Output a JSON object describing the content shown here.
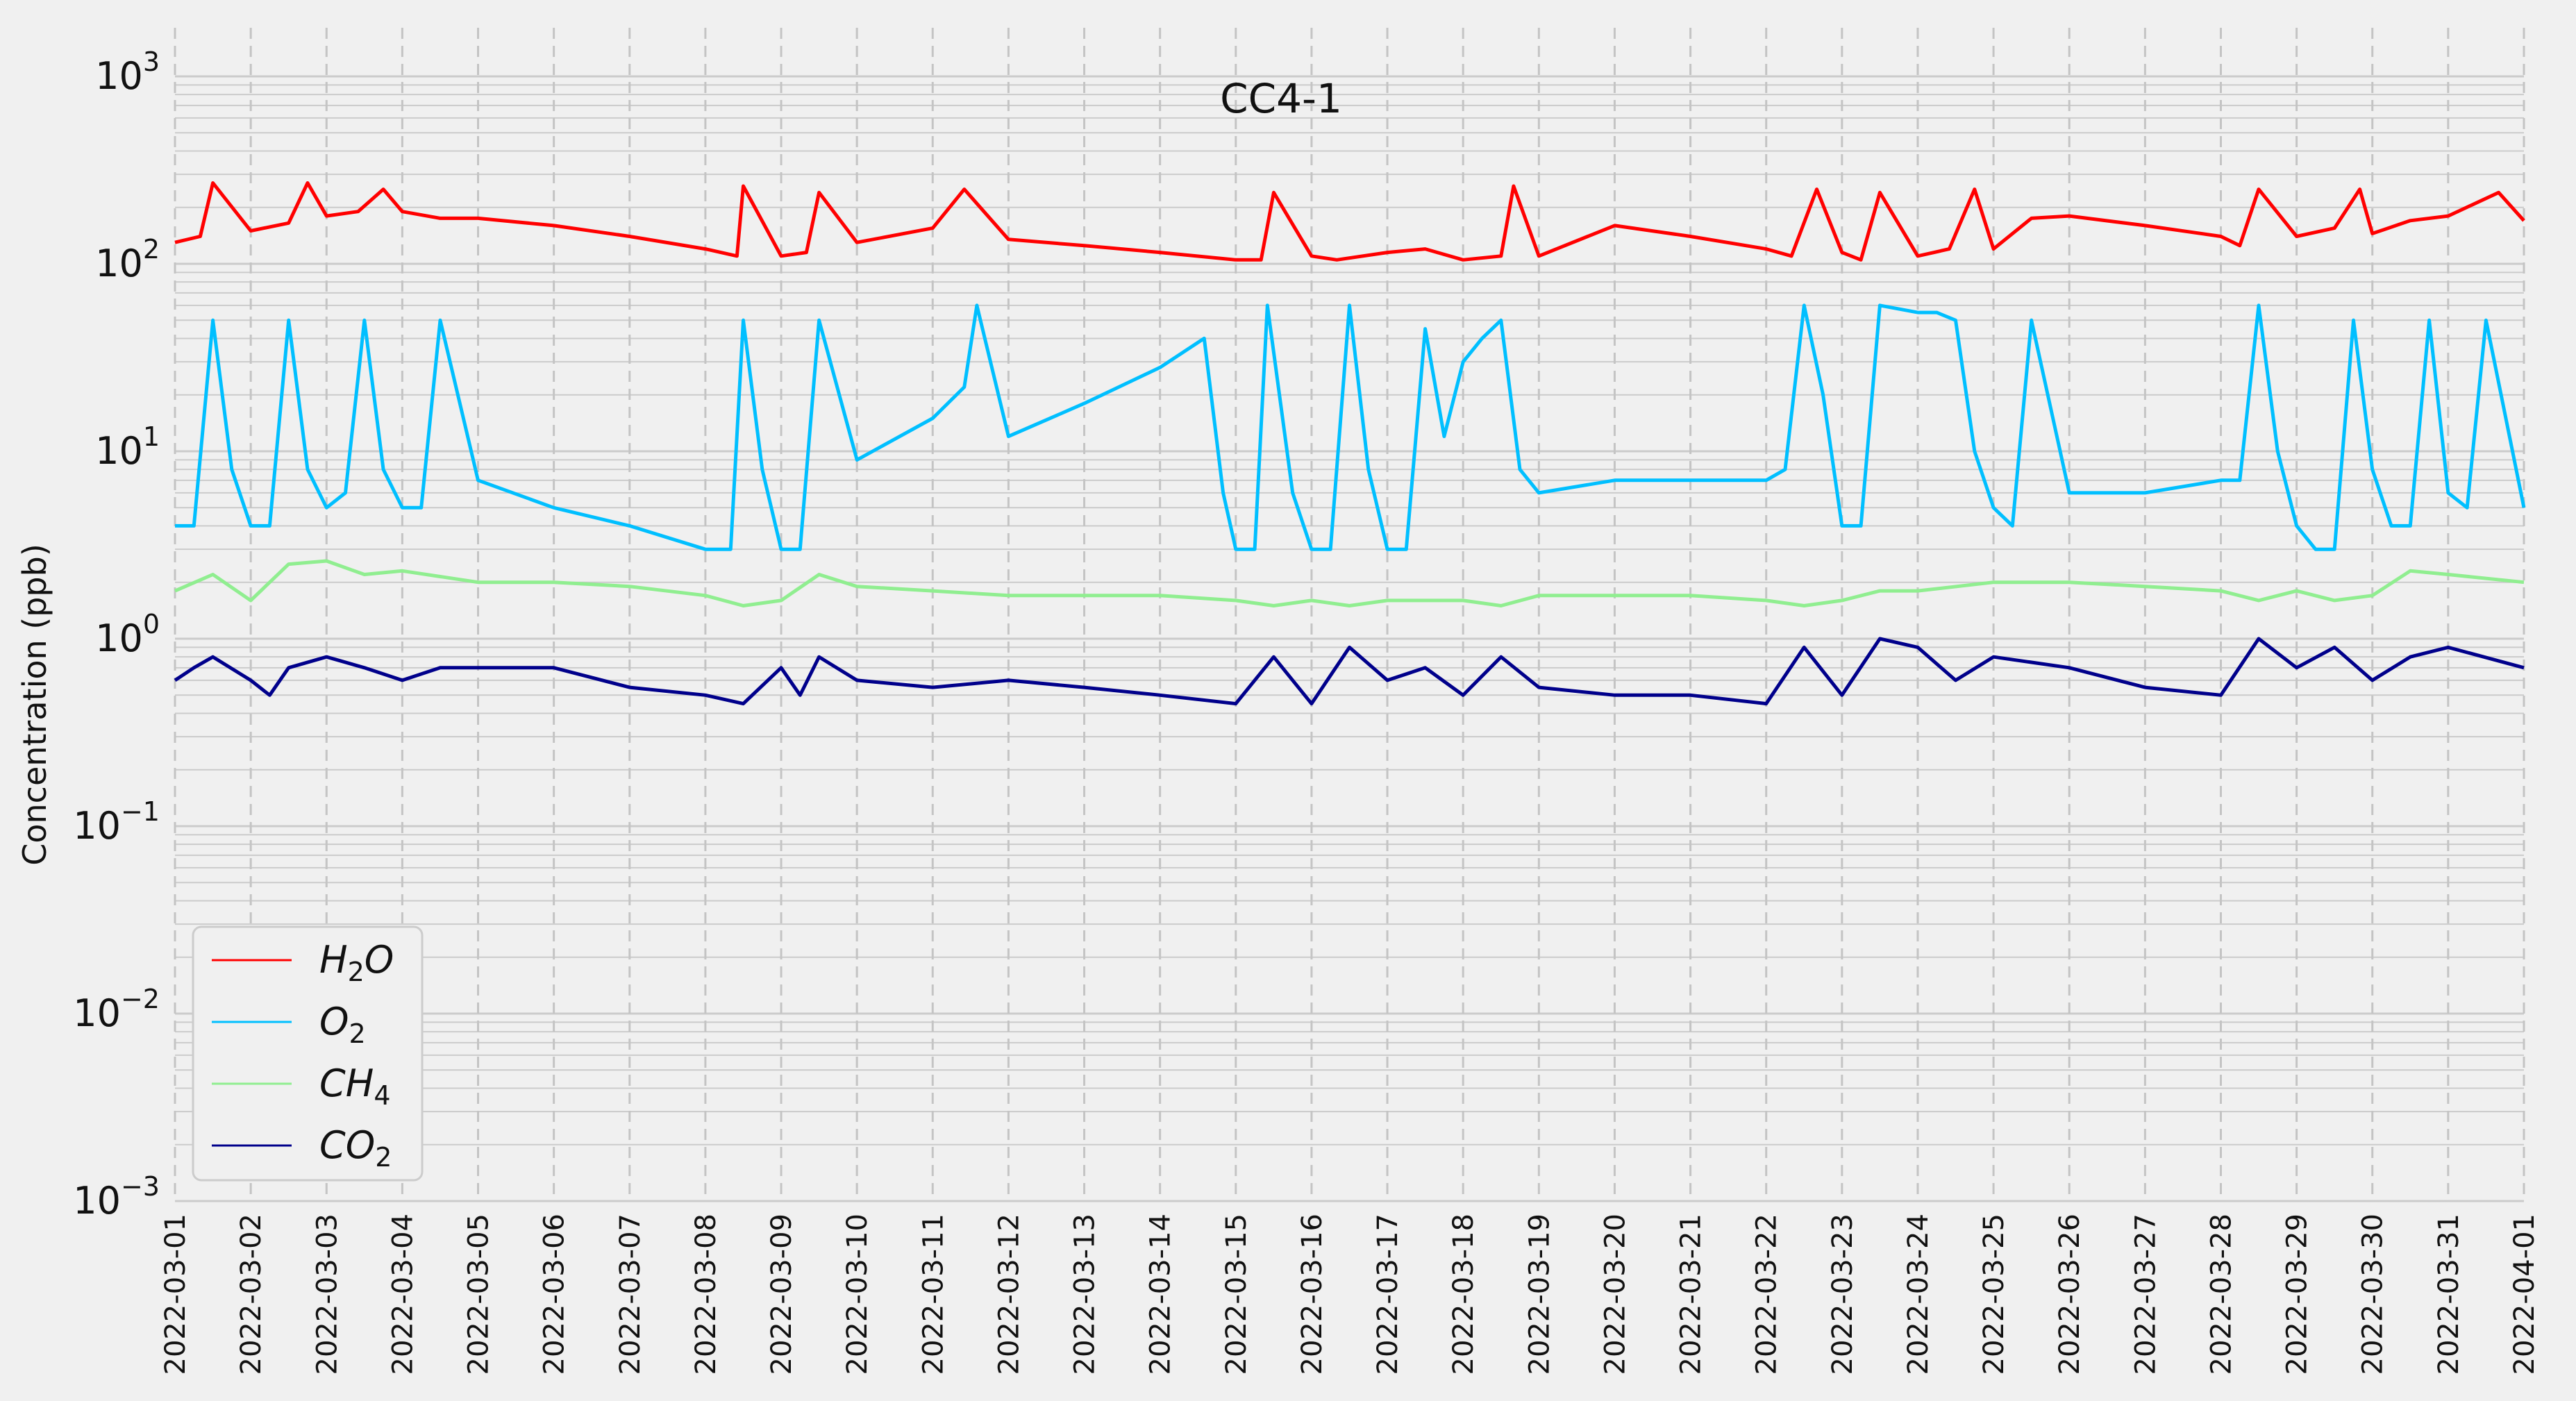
{
  "chart_data": {
    "type": "line",
    "title": "CC4-1",
    "xlabel": "",
    "ylabel": "Concentration (ppb)",
    "yscale": "log",
    "ylim": [
      0.001,
      1000
    ],
    "xlim": [
      "2022-03-01",
      "2022-04-01"
    ],
    "grid": true,
    "legend_position": "lower-left",
    "y_ticks": [
      {
        "value": 0.001,
        "base": "10",
        "exp": "−3"
      },
      {
        "value": 0.01,
        "base": "10",
        "exp": "−2"
      },
      {
        "value": 0.1,
        "base": "10",
        "exp": "−1"
      },
      {
        "value": 1,
        "base": "10",
        "exp": "0"
      },
      {
        "value": 10,
        "base": "10",
        "exp": "1"
      },
      {
        "value": 100,
        "base": "10",
        "exp": "2"
      },
      {
        "value": 1000,
        "base": "10",
        "exp": "3"
      }
    ],
    "x_ticks": [
      "2022-03-01",
      "2022-03-02",
      "2022-03-03",
      "2022-03-04",
      "2022-03-05",
      "2022-03-06",
      "2022-03-07",
      "2022-03-08",
      "2022-03-09",
      "2022-03-10",
      "2022-03-11",
      "2022-03-12",
      "2022-03-13",
      "2022-03-14",
      "2022-03-15",
      "2022-03-16",
      "2022-03-17",
      "2022-03-18",
      "2022-03-19",
      "2022-03-20",
      "2022-03-21",
      "2022-03-22",
      "2022-03-23",
      "2022-03-24",
      "2022-03-25",
      "2022-03-26",
      "2022-03-27",
      "2022-03-28",
      "2022-03-29",
      "2022-03-30",
      "2022-03-31",
      "2022-04-01"
    ],
    "series": [
      {
        "name_base": "H",
        "name_sub": "2",
        "name_tail": "O",
        "color": "#ff0000",
        "x": [
          "2022-03-01",
          "2022-03-01 08:00",
          "2022-03-01 12:00",
          "2022-03-02",
          "2022-03-02 12:00",
          "2022-03-02 18:00",
          "2022-03-03",
          "2022-03-03 10:00",
          "2022-03-03 18:00",
          "2022-03-04",
          "2022-03-04 12:00",
          "2022-03-05",
          "2022-03-06",
          "2022-03-07",
          "2022-03-08",
          "2022-03-08 10:00",
          "2022-03-08 12:00",
          "2022-03-09",
          "2022-03-09 08:00",
          "2022-03-09 12:00",
          "2022-03-10",
          "2022-03-11",
          "2022-03-11 10:00",
          "2022-03-12",
          "2022-03-13",
          "2022-03-14",
          "2022-03-15",
          "2022-03-15 08:00",
          "2022-03-15 12:00",
          "2022-03-16",
          "2022-03-16 08:00",
          "2022-03-17",
          "2022-03-17 12:00",
          "2022-03-18",
          "2022-03-18 12:00",
          "2022-03-18 16:00",
          "2022-03-19",
          "2022-03-20",
          "2022-03-21",
          "2022-03-22",
          "2022-03-22 08:00",
          "2022-03-22 16:00",
          "2022-03-23",
          "2022-03-23 06:00",
          "2022-03-23 12:00",
          "2022-03-24",
          "2022-03-24 10:00",
          "2022-03-24 18:00",
          "2022-03-25",
          "2022-03-25 12:00",
          "2022-03-26",
          "2022-03-27",
          "2022-03-28",
          "2022-03-28 06:00",
          "2022-03-28 12:00",
          "2022-03-29",
          "2022-03-29 12:00",
          "2022-03-29 20:00",
          "2022-03-30",
          "2022-03-30 12:00",
          "2022-03-31",
          "2022-03-31 16:00",
          "2022-04-01"
        ],
        "values": [
          130,
          140,
          270,
          150,
          165,
          270,
          180,
          190,
          250,
          190,
          175,
          175,
          160,
          140,
          120,
          110,
          260,
          110,
          115,
          240,
          130,
          155,
          250,
          135,
          125,
          115,
          105,
          105,
          240,
          110,
          105,
          115,
          120,
          105,
          110,
          260,
          110,
          160,
          140,
          120,
          110,
          250,
          115,
          105,
          240,
          110,
          120,
          250,
          120,
          175,
          180,
          160,
          140,
          125,
          250,
          140,
          155,
          250,
          145,
          170,
          180,
          240,
          170
        ]
      },
      {
        "name_base": "O",
        "name_sub": "2",
        "name_tail": "",
        "color": "#00bfff",
        "x": [
          "2022-03-01",
          "2022-03-01 06:00",
          "2022-03-01 12:00",
          "2022-03-01 18:00",
          "2022-03-02",
          "2022-03-02 06:00",
          "2022-03-02 12:00",
          "2022-03-02 18:00",
          "2022-03-03",
          "2022-03-03 06:00",
          "2022-03-03 12:00",
          "2022-03-03 18:00",
          "2022-03-04",
          "2022-03-04 06:00",
          "2022-03-04 12:00",
          "2022-03-05",
          "2022-03-06",
          "2022-03-07",
          "2022-03-08",
          "2022-03-08 08:00",
          "2022-03-08 12:00",
          "2022-03-08 18:00",
          "2022-03-09",
          "2022-03-09 06:00",
          "2022-03-09 12:00",
          "2022-03-10",
          "2022-03-11",
          "2022-03-11 10:00",
          "2022-03-11 14:00",
          "2022-03-12",
          "2022-03-13",
          "2022-03-14",
          "2022-03-14 14:00",
          "2022-03-14 20:00",
          "2022-03-15",
          "2022-03-15 06:00",
          "2022-03-15 10:00",
          "2022-03-15 18:00",
          "2022-03-16",
          "2022-03-16 06:00",
          "2022-03-16 12:00",
          "2022-03-16 18:00",
          "2022-03-17",
          "2022-03-17 06:00",
          "2022-03-17 12:00",
          "2022-03-17 18:00",
          "2022-03-18",
          "2022-03-18 06:00",
          "2022-03-18 12:00",
          "2022-03-18 18:00",
          "2022-03-19",
          "2022-03-20",
          "2022-03-21",
          "2022-03-22",
          "2022-03-22 06:00",
          "2022-03-22 12:00",
          "2022-03-22 18:00",
          "2022-03-23",
          "2022-03-23 06:00",
          "2022-03-23 12:00",
          "2022-03-24",
          "2022-03-24 06:00",
          "2022-03-24 12:00",
          "2022-03-24 18:00",
          "2022-03-25",
          "2022-03-25 06:00",
          "2022-03-25 12:00",
          "2022-03-26",
          "2022-03-27",
          "2022-03-28",
          "2022-03-28 06:00",
          "2022-03-28 12:00",
          "2022-03-28 18:00",
          "2022-03-29",
          "2022-03-29 06:00",
          "2022-03-29 12:00",
          "2022-03-29 18:00",
          "2022-03-30",
          "2022-03-30 06:00",
          "2022-03-30 12:00",
          "2022-03-30 18:00",
          "2022-03-31",
          "2022-03-31 06:00",
          "2022-03-31 12:00",
          "2022-04-01"
        ],
        "values": [
          4,
          4,
          50,
          8,
          4,
          4,
          50,
          8,
          5,
          6,
          50,
          8,
          5,
          5,
          50,
          7,
          5,
          4,
          3,
          3,
          50,
          8,
          3,
          3,
          50,
          9,
          15,
          22,
          60,
          12,
          18,
          28,
          40,
          6,
          3,
          3,
          60,
          6,
          3,
          3,
          60,
          8,
          3,
          3,
          45,
          12,
          30,
          40,
          50,
          8,
          6,
          7,
          7,
          7,
          8,
          60,
          20,
          4,
          4,
          60,
          55,
          55,
          50,
          10,
          5,
          4,
          50,
          6,
          6,
          7,
          7,
          60,
          10,
          4,
          3,
          3,
          50,
          8,
          4,
          4,
          50,
          6,
          5,
          50,
          5
        ]
      },
      {
        "name_base": "CH",
        "name_sub": "4",
        "name_tail": "",
        "color": "#90ee90",
        "x": [
          "2022-03-01",
          "2022-03-01 12:00",
          "2022-03-02",
          "2022-03-02 12:00",
          "2022-03-03",
          "2022-03-03 12:00",
          "2022-03-04",
          "2022-03-05",
          "2022-03-06",
          "2022-03-07",
          "2022-03-08",
          "2022-03-08 12:00",
          "2022-03-09",
          "2022-03-09 12:00",
          "2022-03-10",
          "2022-03-11",
          "2022-03-12",
          "2022-03-13",
          "2022-03-14",
          "2022-03-15",
          "2022-03-15 12:00",
          "2022-03-16",
          "2022-03-16 12:00",
          "2022-03-17",
          "2022-03-18",
          "2022-03-18 12:00",
          "2022-03-19",
          "2022-03-20",
          "2022-03-21",
          "2022-03-22",
          "2022-03-22 12:00",
          "2022-03-23",
          "2022-03-23 12:00",
          "2022-03-24",
          "2022-03-25",
          "2022-03-26",
          "2022-03-27",
          "2022-03-28",
          "2022-03-28 12:00",
          "2022-03-29",
          "2022-03-29 12:00",
          "2022-03-30",
          "2022-03-30 12:00",
          "2022-03-31",
          "2022-04-01"
        ],
        "values": [
          1.8,
          2.2,
          1.6,
          2.5,
          2.6,
          2.2,
          2.3,
          2.0,
          2.0,
          1.9,
          1.7,
          1.5,
          1.6,
          2.2,
          1.9,
          1.8,
          1.7,
          1.7,
          1.7,
          1.6,
          1.5,
          1.6,
          1.5,
          1.6,
          1.6,
          1.5,
          1.7,
          1.7,
          1.7,
          1.6,
          1.5,
          1.6,
          1.8,
          1.8,
          2.0,
          2.0,
          1.9,
          1.8,
          1.6,
          1.8,
          1.6,
          1.7,
          2.3,
          2.2,
          2.0
        ]
      },
      {
        "name_base": "CO",
        "name_sub": "2",
        "name_tail": "",
        "color": "#00008b",
        "x": [
          "2022-03-01",
          "2022-03-01 06:00",
          "2022-03-01 12:00",
          "2022-03-02",
          "2022-03-02 06:00",
          "2022-03-02 12:00",
          "2022-03-03",
          "2022-03-03 12:00",
          "2022-03-04",
          "2022-03-04 12:00",
          "2022-03-05",
          "2022-03-06",
          "2022-03-07",
          "2022-03-08",
          "2022-03-08 12:00",
          "2022-03-09",
          "2022-03-09 06:00",
          "2022-03-09 12:00",
          "2022-03-10",
          "2022-03-11",
          "2022-03-12",
          "2022-03-13",
          "2022-03-14",
          "2022-03-15",
          "2022-03-15 12:00",
          "2022-03-16",
          "2022-03-16 12:00",
          "2022-03-17",
          "2022-03-17 12:00",
          "2022-03-18",
          "2022-03-18 12:00",
          "2022-03-19",
          "2022-03-20",
          "2022-03-21",
          "2022-03-22",
          "2022-03-22 12:00",
          "2022-03-23",
          "2022-03-23 12:00",
          "2022-03-24",
          "2022-03-24 12:00",
          "2022-03-25",
          "2022-03-26",
          "2022-03-27",
          "2022-03-28",
          "2022-03-28 12:00",
          "2022-03-29",
          "2022-03-29 12:00",
          "2022-03-30",
          "2022-03-30 12:00",
          "2022-03-31",
          "2022-04-01"
        ],
        "values": [
          0.6,
          0.7,
          0.8,
          0.6,
          0.5,
          0.7,
          0.8,
          0.7,
          0.6,
          0.7,
          0.7,
          0.7,
          0.55,
          0.5,
          0.45,
          0.7,
          0.5,
          0.8,
          0.6,
          0.55,
          0.6,
          0.55,
          0.5,
          0.45,
          0.8,
          0.45,
          0.9,
          0.6,
          0.7,
          0.5,
          0.8,
          0.55,
          0.5,
          0.5,
          0.45,
          0.9,
          0.5,
          1.0,
          0.9,
          0.6,
          0.8,
          0.7,
          0.55,
          0.5,
          1.0,
          0.7,
          0.9,
          0.6,
          0.8,
          0.9,
          0.7
        ]
      }
    ]
  }
}
